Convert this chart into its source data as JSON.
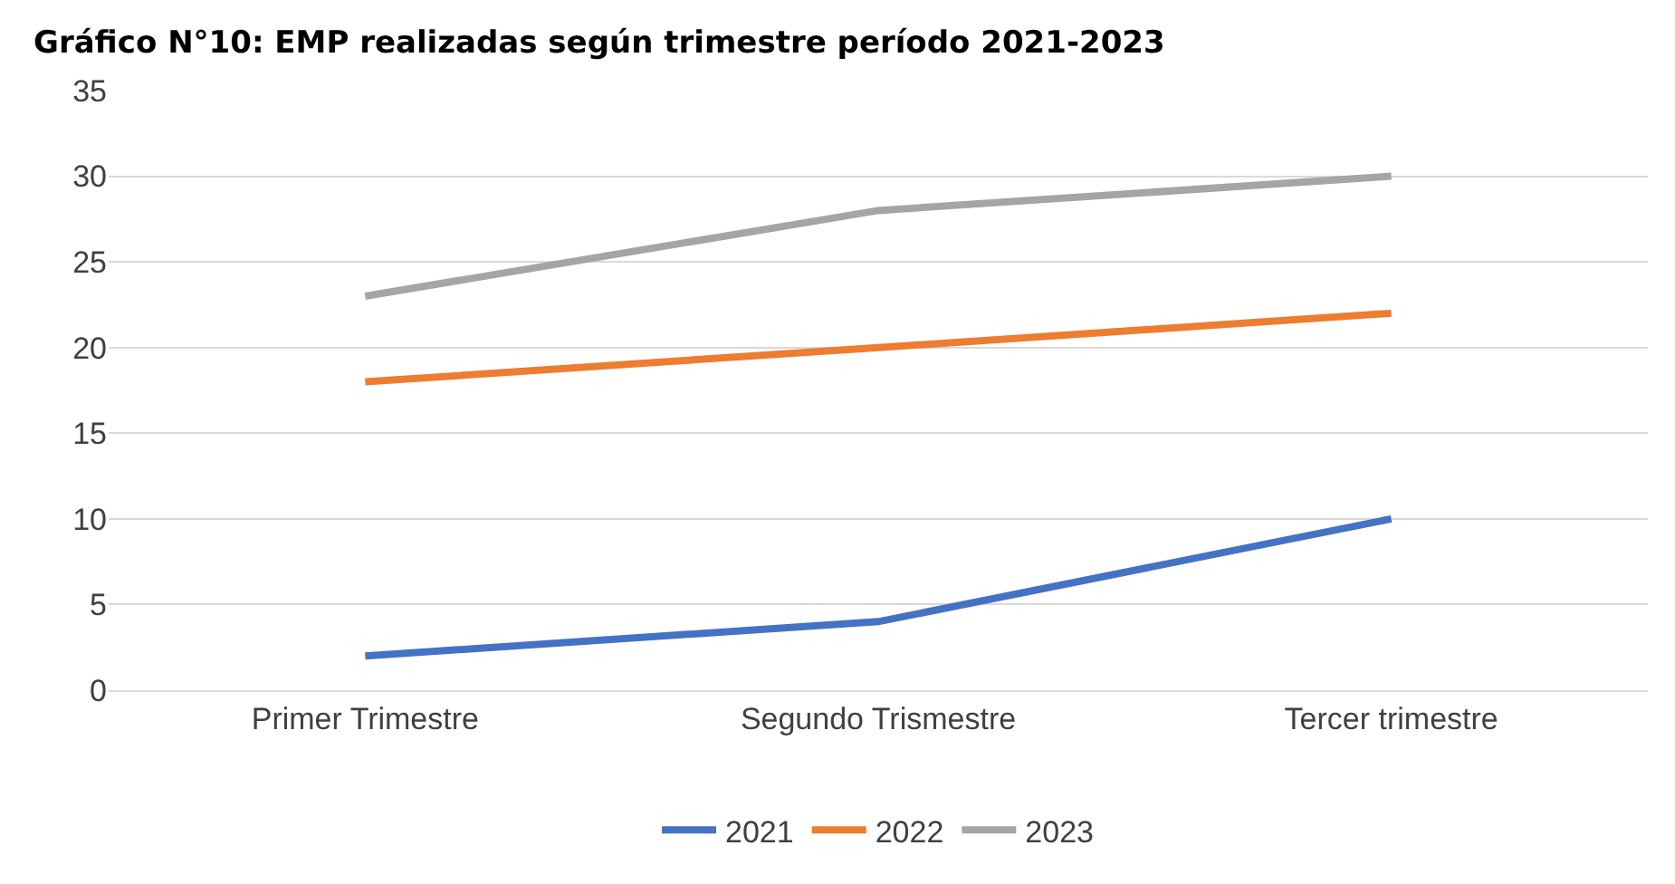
{
  "chart_data": {
    "type": "line",
    "title": "Gráfico N°10: EMP realizadas según trimestre período 2021-2023",
    "categories": [
      "Primer Trimestre",
      "Segundo Trismestre",
      "Tercer trimestre"
    ],
    "series": [
      {
        "name": "2021",
        "color": "#4472c4",
        "values": [
          2,
          4,
          10
        ]
      },
      {
        "name": "2022",
        "color": "#ed7d31",
        "values": [
          18,
          20,
          22
        ]
      },
      {
        "name": "2023",
        "color": "#a5a5a5",
        "values": [
          23,
          28,
          30
        ]
      }
    ],
    "ylim": [
      0,
      35
    ],
    "yticks": [
      0,
      5,
      10,
      15,
      20,
      25,
      30,
      35
    ],
    "grid": "y",
    "legend": "bottom",
    "marker": "none",
    "line_style": "solid"
  }
}
